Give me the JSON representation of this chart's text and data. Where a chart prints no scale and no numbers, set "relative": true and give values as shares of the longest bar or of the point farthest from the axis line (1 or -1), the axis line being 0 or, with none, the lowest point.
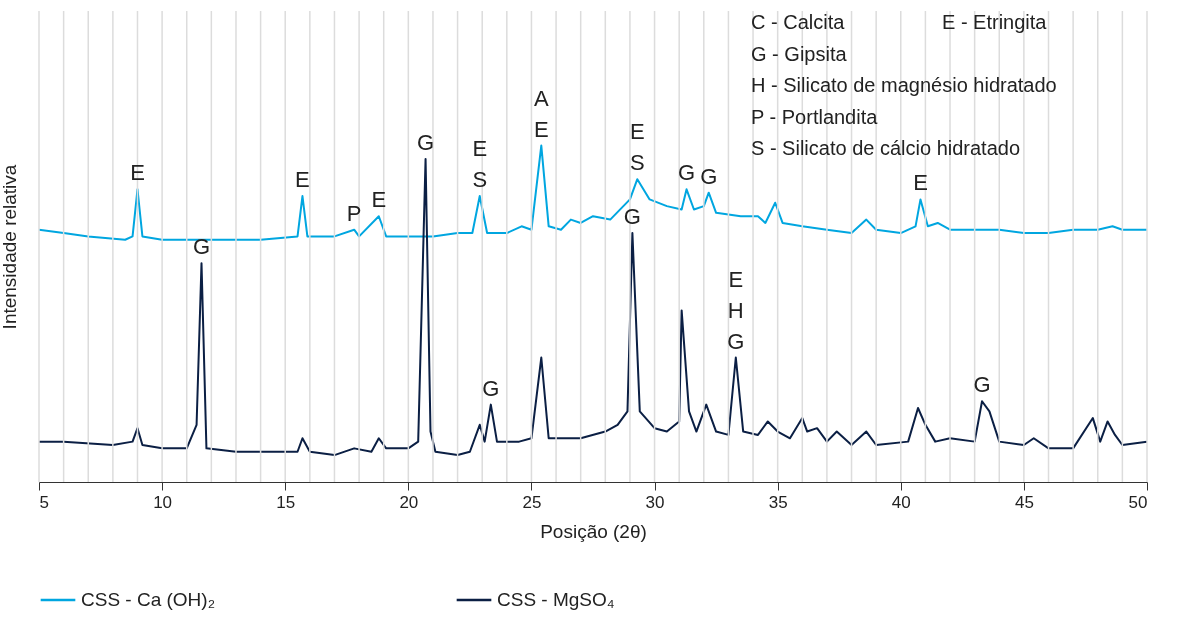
{
  "chart_data": {
    "type": "line",
    "relative": true,
    "xlabel": "Posição (2θ)",
    "ylabel": "Intensidade relativa",
    "xlim": [
      5,
      50
    ],
    "xticks": [
      5,
      {
        "value": 6,
        "label": null
      },
      {
        "value": 7,
        "label": null
      },
      {
        "value": 8,
        "label": null
      },
      {
        "value": 9,
        "label": null
      },
      10,
      {
        "value": 11,
        "label": null
      },
      {
        "value": 12,
        "label": null
      },
      {
        "value": 13,
        "label": null
      },
      {
        "value": 14,
        "label": null
      },
      15,
      {
        "value": 16,
        "label": null
      },
      {
        "value": 17,
        "label": null
      },
      {
        "value": 18,
        "label": null
      },
      {
        "value": 19,
        "label": null
      },
      20,
      {
        "value": 21,
        "label": null
      },
      {
        "value": 22,
        "label": null
      },
      {
        "value": 23,
        "label": null
      },
      {
        "value": 24,
        "label": null
      },
      25,
      {
        "value": 26,
        "label": null
      },
      {
        "value": 27,
        "label": null
      },
      {
        "value": 28,
        "label": null
      },
      {
        "value": 29,
        "label": null
      },
      30,
      {
        "value": 31,
        "label": null
      },
      {
        "value": 32,
        "label": null
      },
      {
        "value": 33,
        "label": null
      },
      {
        "value": 34,
        "label": null
      },
      35,
      {
        "value": 36,
        "label": null
      },
      {
        "value": 37,
        "label": null
      },
      {
        "value": 38,
        "label": null
      },
      {
        "value": 39,
        "label": null
      },
      40,
      {
        "value": 41,
        "label": null
      },
      {
        "value": 42,
        "label": null
      },
      {
        "value": 43,
        "label": null
      },
      {
        "value": 44,
        "label": null
      },
      45,
      {
        "value": 46,
        "label": null
      },
      {
        "value": 47,
        "label": null
      },
      {
        "value": 48,
        "label": null
      },
      {
        "value": 49,
        "label": null
      },
      50
    ],
    "grid": "x",
    "legend": "bottom",
    "line_style": "solid",
    "series": [
      {
        "name": "CSS -  Ca (OH)₂",
        "color": "#00a6e0",
        "x": [
          5,
          6,
          7,
          8.5,
          8.8,
          9,
          9.2,
          10,
          12,
          14,
          15.5,
          15.7,
          15.9,
          17,
          17.8,
          18,
          18.8,
          19.1,
          20,
          21,
          22,
          22.6,
          22.9,
          23.2,
          24,
          24.6,
          25,
          25.4,
          25.7,
          26.2,
          26.6,
          27,
          27.5,
          28.2,
          29,
          29.3,
          29.8,
          30.5,
          31.1,
          31.3,
          31.6,
          32,
          32.2,
          32.5,
          33.5,
          34.2,
          34.5,
          34.9,
          35.2,
          36,
          37,
          38,
          38.6,
          39,
          40,
          40.6,
          40.8,
          41.1,
          41.5,
          42,
          43,
          44,
          45,
          46,
          47,
          48,
          48.6,
          49,
          50
        ],
        "values": [
          0.75,
          0.74,
          0.73,
          0.72,
          0.73,
          0.87,
          0.73,
          0.72,
          0.72,
          0.72,
          0.73,
          0.85,
          0.73,
          0.73,
          0.75,
          0.73,
          0.79,
          0.73,
          0.73,
          0.73,
          0.74,
          0.74,
          0.85,
          0.74,
          0.74,
          0.76,
          0.75,
          1.0,
          0.76,
          0.75,
          0.78,
          0.77,
          0.79,
          0.78,
          0.84,
          0.9,
          0.84,
          0.82,
          0.81,
          0.87,
          0.81,
          0.82,
          0.86,
          0.8,
          0.79,
          0.79,
          0.77,
          0.83,
          0.77,
          0.76,
          0.75,
          0.74,
          0.78,
          0.75,
          0.74,
          0.76,
          0.84,
          0.76,
          0.77,
          0.75,
          0.75,
          0.75,
          0.74,
          0.74,
          0.75,
          0.75,
          0.76,
          0.75,
          0.75
        ]
      },
      {
        "name": "CSS -  MgSO₄",
        "color": "#0b1f44",
        "x": [
          5,
          6,
          8,
          8.8,
          9,
          9.2,
          10,
          11,
          11.4,
          11.6,
          11.8,
          13,
          15,
          15.5,
          15.7,
          16,
          17,
          17.8,
          18.5,
          18.8,
          19.1,
          20,
          20.4,
          20.7,
          20.9,
          21.1,
          22,
          22.5,
          22.9,
          23.1,
          23.35,
          23.6,
          24.5,
          25,
          25.4,
          25.7,
          26.5,
          27,
          28,
          28.5,
          28.9,
          29.1,
          29.4,
          30,
          30.5,
          31,
          31.1,
          31.4,
          31.7,
          32.1,
          32.5,
          33,
          33.3,
          33.6,
          34.2,
          34.6,
          35,
          35.5,
          36,
          36.2,
          36.6,
          37,
          37.4,
          38,
          38.6,
          39,
          40.3,
          40.7,
          41,
          41.4,
          42,
          43,
          43.3,
          43.6,
          44,
          45,
          45.4,
          46,
          47,
          47.8,
          48.1,
          48.4,
          48.7,
          49,
          50
        ],
        "values": [
          0.12,
          0.12,
          0.11,
          0.12,
          0.16,
          0.11,
          0.1,
          0.1,
          0.17,
          0.65,
          0.1,
          0.09,
          0.09,
          0.09,
          0.13,
          0.09,
          0.08,
          0.1,
          0.09,
          0.13,
          0.1,
          0.1,
          0.12,
          0.96,
          0.15,
          0.09,
          0.08,
          0.09,
          0.17,
          0.12,
          0.23,
          0.12,
          0.12,
          0.13,
          0.37,
          0.13,
          0.13,
          0.13,
          0.15,
          0.17,
          0.21,
          0.74,
          0.21,
          0.16,
          0.15,
          0.18,
          0.51,
          0.21,
          0.15,
          0.23,
          0.15,
          0.14,
          0.37,
          0.15,
          0.14,
          0.18,
          0.15,
          0.13,
          0.19,
          0.15,
          0.16,
          0.12,
          0.15,
          0.11,
          0.15,
          0.11,
          0.12,
          0.22,
          0.17,
          0.12,
          0.13,
          0.12,
          0.24,
          0.21,
          0.12,
          0.11,
          0.13,
          0.1,
          0.1,
          0.19,
          0.12,
          0.18,
          0.14,
          0.11,
          0.12
        ]
      }
    ],
    "annotations": [
      {
        "text": "E",
        "x": 9,
        "y": 0.87
      },
      {
        "text": "E",
        "x": 15.7,
        "y": 0.85
      },
      {
        "text": "P",
        "x": 17.8,
        "y": 0.75
      },
      {
        "text": "E",
        "x": 18.8,
        "y": 0.79
      },
      {
        "text": "G",
        "x": 20.7,
        "y": 0.96
      },
      {
        "text": "E\nS",
        "x": 22.9,
        "y": 0.85
      },
      {
        "text": "A\nE",
        "x": 25.4,
        "y": 1.0
      },
      {
        "text": "E\nS",
        "x": 29.3,
        "y": 0.9
      },
      {
        "text": "G",
        "x": 31.3,
        "y": 0.87
      },
      {
        "text": "G",
        "x": 32.2,
        "y": 0.86
      },
      {
        "text": "E",
        "x": 40.8,
        "y": 0.84
      },
      {
        "text": "G",
        "x": 11.6,
        "y": 0.65
      },
      {
        "text": "G",
        "x": 29.1,
        "y": 0.74
      },
      {
        "text": "G",
        "x": 23.35,
        "y": 0.23
      },
      {
        "text": "E\nH\nG",
        "x": 33.3,
        "y": 0.37
      },
      {
        "text": "G",
        "x": 43.3,
        "y": 0.24
      },
      "C - Calcita",
      "E - Etringita",
      "G - Gipsita",
      "H - Silicato de magnésio hidratado",
      "P - Portlandita",
      "S - Silicato de cálcio hidratado"
    ]
  }
}
